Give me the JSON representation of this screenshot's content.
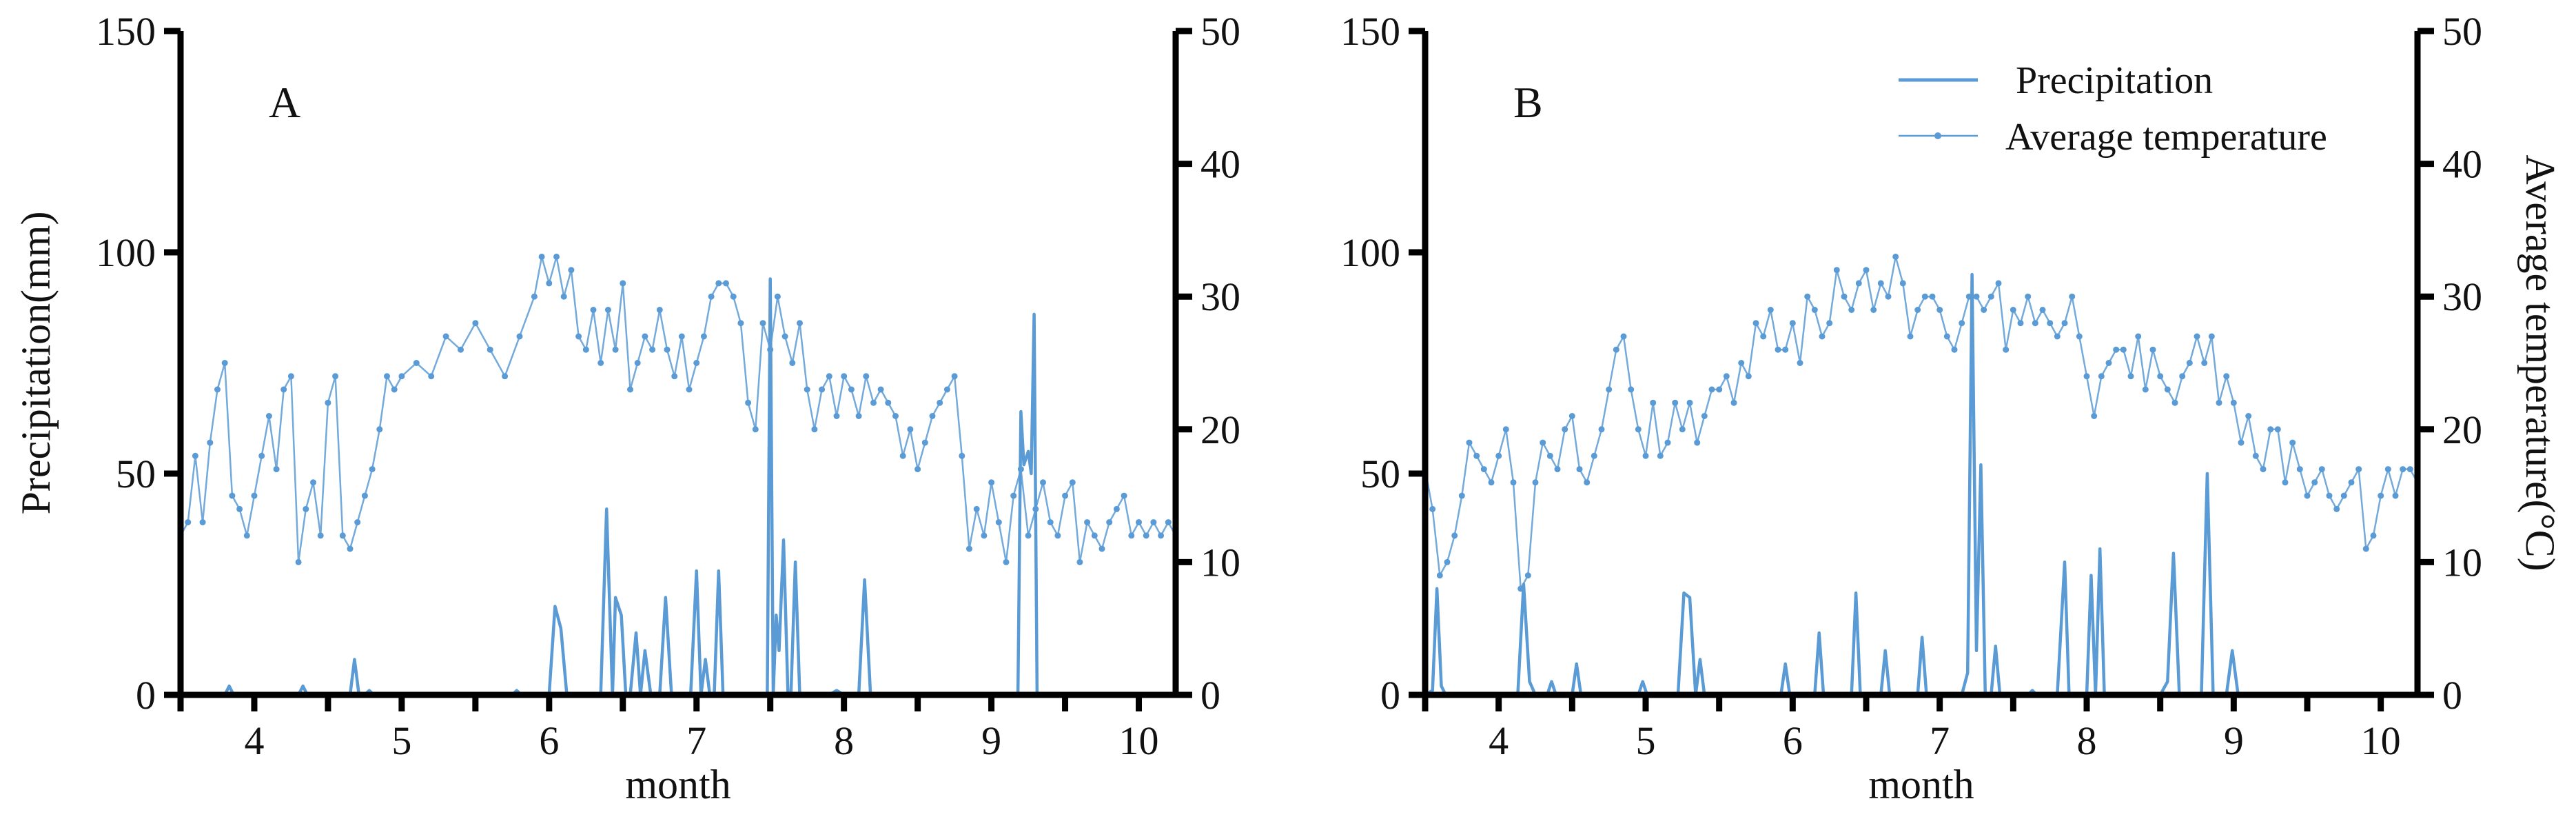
{
  "figure": {
    "legend": {
      "precipitation": "Precipitation",
      "temperature": "Average temperature"
    }
  },
  "colors": {
    "series": "#5b9bd5",
    "axis": "#000000"
  },
  "chart_data": [
    {
      "type": "line",
      "panel_label": "A",
      "xlabel": "month",
      "ylabel": "Precipitation(mm)",
      "ylabel_right": "",
      "xlim": [
        3.5,
        10.25
      ],
      "xticks": [
        4,
        5,
        6,
        7,
        8,
        9,
        10
      ],
      "ylim": [
        0,
        150
      ],
      "yticks": [
        0,
        50,
        100,
        150
      ],
      "ylim_right": [
        0,
        50
      ],
      "yticks_right": [
        0,
        10,
        20,
        30,
        40,
        50
      ],
      "series": [
        {
          "name": "Precipitation",
          "axis": "left",
          "x": [
            3.5,
            3.8,
            3.83,
            3.86,
            4.3,
            4.33,
            4.36,
            4.65,
            4.68,
            4.71,
            4.75,
            4.78,
            4.81,
            5.75,
            5.78,
            5.81,
            6.0,
            6.04,
            6.08,
            6.12,
            6.35,
            6.39,
            6.43,
            6.45,
            6.49,
            6.52,
            6.55,
            6.59,
            6.62,
            6.65,
            6.69,
            6.72,
            6.75,
            6.79,
            6.83,
            6.92,
            6.96,
            7.0,
            7.03,
            7.06,
            7.09,
            7.12,
            7.15,
            7.18,
            7.22,
            7.45,
            7.48,
            7.5,
            7.52,
            7.54,
            7.56,
            7.59,
            7.62,
            7.64,
            7.67,
            7.7,
            7.73,
            7.85,
            7.9,
            7.95,
            8.0,
            8.1,
            8.14,
            8.18,
            8.25,
            9.15,
            9.18,
            9.2,
            9.22,
            9.25,
            9.27,
            9.29,
            9.31,
            9.33,
            10.25
          ],
          "y": [
            0,
            0,
            2,
            0,
            0,
            2,
            0,
            0,
            8,
            0,
            0,
            1,
            0,
            0,
            1,
            0,
            0,
            20,
            15,
            0,
            0,
            42,
            0,
            22,
            18,
            0,
            0,
            14,
            0,
            10,
            0,
            0,
            0,
            22,
            0,
            0,
            0,
            28,
            0,
            8,
            0,
            0,
            28,
            0,
            0,
            0,
            0,
            94,
            0,
            18,
            10,
            35,
            0,
            0,
            30,
            0,
            0,
            0,
            0,
            1,
            0,
            0,
            26,
            0,
            0,
            0,
            0,
            64,
            52,
            55,
            50,
            86,
            0,
            0,
            0
          ]
        },
        {
          "name": "Average temperature",
          "axis": "right",
          "x": [
            3.5,
            3.55,
            3.6,
            3.65,
            3.7,
            3.75,
            3.8,
            3.85,
            3.9,
            3.95,
            4.0,
            4.05,
            4.1,
            4.15,
            4.2,
            4.25,
            4.3,
            4.35,
            4.4,
            4.45,
            4.5,
            4.55,
            4.6,
            4.65,
            4.7,
            4.75,
            4.8,
            4.85,
            4.9,
            4.95,
            5.0,
            5.1,
            5.2,
            5.3,
            5.4,
            5.5,
            5.6,
            5.7,
            5.8,
            5.9,
            5.95,
            6.0,
            6.05,
            6.1,
            6.15,
            6.2,
            6.25,
            6.3,
            6.35,
            6.4,
            6.45,
            6.5,
            6.55,
            6.6,
            6.65,
            6.7,
            6.75,
            6.8,
            6.85,
            6.9,
            6.95,
            7.0,
            7.05,
            7.1,
            7.15,
            7.2,
            7.25,
            7.3,
            7.35,
            7.4,
            7.45,
            7.5,
            7.55,
            7.6,
            7.65,
            7.7,
            7.75,
            7.8,
            7.85,
            7.9,
            7.95,
            8.0,
            8.05,
            8.1,
            8.15,
            8.2,
            8.25,
            8.3,
            8.35,
            8.4,
            8.45,
            8.5,
            8.55,
            8.6,
            8.65,
            8.7,
            8.75,
            8.8,
            8.85,
            8.9,
            8.95,
            9.0,
            9.05,
            9.1,
            9.15,
            9.2,
            9.25,
            9.3,
            9.35,
            9.4,
            9.45,
            9.5,
            9.55,
            9.6,
            9.65,
            9.7,
            9.75,
            9.8,
            9.85,
            9.9,
            9.95,
            10.0,
            10.05,
            10.1,
            10.15,
            10.2,
            10.25
          ],
          "y": [
            12,
            13,
            18,
            13,
            19,
            23,
            25,
            15,
            14,
            12,
            15,
            18,
            21,
            17,
            23,
            24,
            10,
            14,
            16,
            12,
            22,
            24,
            12,
            11,
            13,
            15,
            17,
            20,
            24,
            23,
            24,
            25,
            24,
            27,
            26,
            28,
            26,
            24,
            27,
            30,
            33,
            31,
            33,
            30,
            32,
            27,
            26,
            29,
            25,
            29,
            26,
            31,
            23,
            25,
            27,
            26,
            29,
            26,
            24,
            27,
            23,
            25,
            27,
            30,
            31,
            31,
            30,
            28,
            22,
            20,
            28,
            26,
            30,
            27,
            25,
            28,
            23,
            20,
            23,
            24,
            21,
            24,
            23,
            21,
            24,
            22,
            23,
            22,
            21,
            18,
            20,
            17,
            19,
            21,
            22,
            23,
            24,
            18,
            11,
            14,
            12,
            16,
            13,
            10,
            15,
            17,
            12,
            14,
            16,
            13,
            12,
            15,
            16,
            10,
            13,
            12,
            11,
            13,
            14,
            15,
            12,
            13,
            12,
            13,
            12,
            13,
            12
          ]
        }
      ]
    },
    {
      "type": "line",
      "panel_label": "B",
      "xlabel": "month",
      "ylabel": "",
      "ylabel_right": "Average temperature(°C)",
      "xlim": [
        3.5,
        10.25
      ],
      "xticks": [
        4,
        5,
        6,
        7,
        8,
        9,
        10
      ],
      "ylim": [
        0,
        150
      ],
      "yticks": [
        0,
        50,
        100,
        150
      ],
      "ylim_right": [
        0,
        50
      ],
      "yticks_right": [
        0,
        10,
        20,
        30,
        40,
        50
      ],
      "series": [
        {
          "name": "Precipitation",
          "axis": "left",
          "x": [
            3.5,
            3.55,
            3.58,
            3.61,
            3.64,
            4.13,
            4.17,
            4.21,
            4.25,
            4.33,
            4.36,
            4.39,
            4.5,
            4.53,
            4.56,
            4.95,
            4.98,
            5.01,
            5.22,
            5.26,
            5.3,
            5.34,
            5.37,
            5.4,
            5.92,
            5.95,
            5.98,
            6.15,
            6.18,
            6.21,
            6.4,
            6.43,
            6.46,
            6.6,
            6.63,
            6.66,
            6.85,
            6.88,
            6.91,
            7.15,
            7.19,
            7.22,
            7.25,
            7.28,
            7.31,
            7.35,
            7.38,
            7.41,
            7.45,
            7.6,
            7.63,
            7.66,
            7.8,
            7.85,
            7.88,
            7.92,
            8.0,
            8.03,
            8.06,
            8.09,
            8.12,
            8.15,
            8.5,
            8.55,
            8.59,
            8.63,
            8.78,
            8.82,
            8.86,
            8.95,
            8.99,
            9.03,
            10.25
          ],
          "y": [
            0,
            1,
            24,
            2,
            0,
            0,
            25,
            3,
            0,
            0,
            3,
            0,
            0,
            7,
            0,
            0,
            3,
            0,
            0,
            23,
            22,
            0,
            8,
            0,
            0,
            7,
            0,
            0,
            14,
            0,
            0,
            23,
            0,
            0,
            10,
            0,
            0,
            13,
            0,
            0,
            5,
            95,
            10,
            52,
            0,
            0,
            11,
            0,
            0,
            0,
            1,
            0,
            0,
            30,
            0,
            0,
            0,
            27,
            0,
            33,
            0,
            0,
            0,
            3,
            32,
            0,
            0,
            50,
            0,
            0,
            10,
            0,
            0
          ]
        },
        {
          "name": "Average temperature",
          "axis": "right",
          "x": [
            3.5,
            3.55,
            3.6,
            3.65,
            3.7,
            3.75,
            3.8,
            3.85,
            3.9,
            3.95,
            4.0,
            4.05,
            4.1,
            4.15,
            4.2,
            4.25,
            4.3,
            4.35,
            4.4,
            4.45,
            4.5,
            4.55,
            4.6,
            4.65,
            4.7,
            4.75,
            4.8,
            4.85,
            4.9,
            4.95,
            5.0,
            5.05,
            5.1,
            5.15,
            5.2,
            5.25,
            5.3,
            5.35,
            5.4,
            5.45,
            5.5,
            5.55,
            5.6,
            5.65,
            5.7,
            5.75,
            5.8,
            5.85,
            5.9,
            5.95,
            6.0,
            6.05,
            6.1,
            6.15,
            6.2,
            6.25,
            6.3,
            6.35,
            6.4,
            6.45,
            6.5,
            6.55,
            6.6,
            6.65,
            6.7,
            6.75,
            6.8,
            6.85,
            6.9,
            6.95,
            7.0,
            7.05,
            7.1,
            7.15,
            7.2,
            7.25,
            7.3,
            7.35,
            7.4,
            7.45,
            7.5,
            7.55,
            7.6,
            7.65,
            7.7,
            7.75,
            7.8,
            7.85,
            7.9,
            7.95,
            8.0,
            8.05,
            8.1,
            8.15,
            8.2,
            8.25,
            8.3,
            8.35,
            8.4,
            8.45,
            8.5,
            8.55,
            8.6,
            8.65,
            8.7,
            8.75,
            8.8,
            8.85,
            8.9,
            8.95,
            9.0,
            9.05,
            9.1,
            9.15,
            9.2,
            9.25,
            9.3,
            9.35,
            9.4,
            9.45,
            9.5,
            9.55,
            9.6,
            9.65,
            9.7,
            9.75,
            9.8,
            9.85,
            9.9,
            9.95,
            10.0,
            10.05,
            10.1,
            10.15,
            10.2,
            10.25
          ],
          "y": [
            17,
            14,
            9,
            10,
            12,
            15,
            19,
            18,
            17,
            16,
            18,
            20,
            16,
            8,
            9,
            16,
            19,
            18,
            17,
            20,
            21,
            17,
            16,
            18,
            20,
            23,
            26,
            27,
            23,
            20,
            18,
            22,
            18,
            19,
            22,
            20,
            22,
            19,
            21,
            23,
            23,
            24,
            22,
            25,
            24,
            28,
            27,
            29,
            26,
            26,
            28,
            25,
            30,
            29,
            27,
            28,
            32,
            30,
            29,
            31,
            32,
            29,
            31,
            30,
            33,
            31,
            27,
            29,
            30,
            30,
            29,
            27,
            26,
            28,
            30,
            30,
            29,
            30,
            31,
            26,
            29,
            28,
            30,
            28,
            29,
            28,
            27,
            28,
            30,
            27,
            24,
            21,
            24,
            25,
            26,
            26,
            24,
            27,
            23,
            26,
            24,
            23,
            22,
            24,
            25,
            27,
            25,
            27,
            22,
            24,
            22,
            19,
            21,
            18,
            17,
            20,
            20,
            16,
            19,
            17,
            15,
            16,
            17,
            15,
            14,
            15,
            16,
            17,
            11,
            12,
            15,
            17,
            15,
            17,
            17,
            16
          ]
        }
      ]
    }
  ]
}
